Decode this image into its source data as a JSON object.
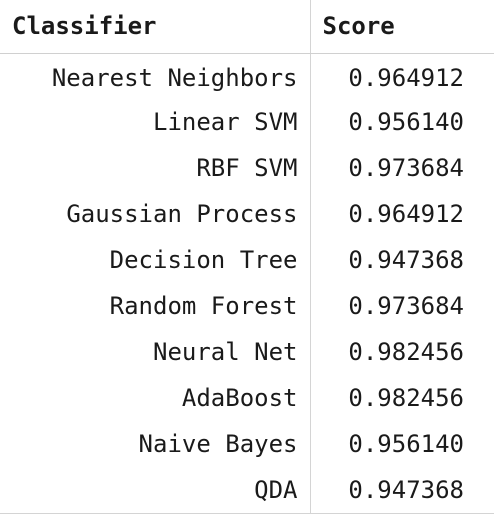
{
  "table": {
    "headers": [
      "Classifier",
      "Score"
    ],
    "rows": [
      {
        "name": "Nearest Neighbors",
        "score": "0.964912"
      },
      {
        "name": "Linear SVM",
        "score": "0.956140"
      },
      {
        "name": "RBF SVM",
        "score": "0.973684"
      },
      {
        "name": "Gaussian Process",
        "score": "0.964912"
      },
      {
        "name": "Decision Tree",
        "score": "0.947368"
      },
      {
        "name": "Random Forest",
        "score": "0.973684"
      },
      {
        "name": "Neural Net",
        "score": "0.982456"
      },
      {
        "name": "AdaBoost",
        "score": "0.982456"
      },
      {
        "name": "Naive Bayes",
        "score": "0.956140"
      },
      {
        "name": "QDA",
        "score": "0.947368"
      }
    ]
  }
}
